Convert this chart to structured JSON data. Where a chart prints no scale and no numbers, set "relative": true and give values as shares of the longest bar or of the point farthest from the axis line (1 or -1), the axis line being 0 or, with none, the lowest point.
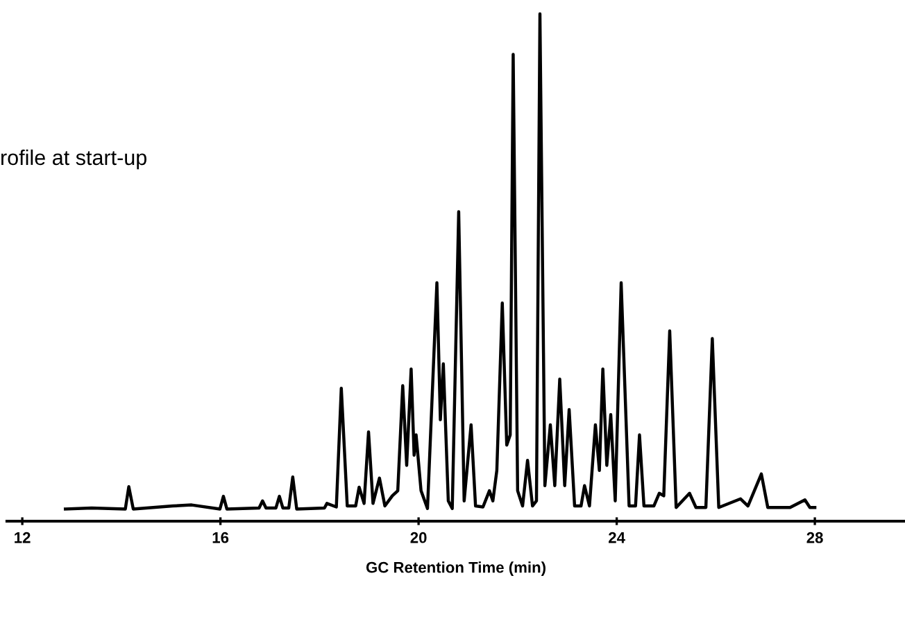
{
  "chart_data": {
    "type": "line",
    "title": "rofile at start-up",
    "xlabel": "GC Retention Time (min)",
    "relative": true,
    "xlim": [
      11.69,
      29.82
    ],
    "xticks": [
      12,
      16,
      20,
      24,
      28
    ],
    "tick_labels": "x",
    "grid": false,
    "marker": "none",
    "line_style": "solid",
    "series": [
      {
        "color": "#000000",
        "x": [
          12.87,
          13.4,
          14.08,
          14.15,
          14.24,
          15.04,
          15.42,
          15.99,
          16.06,
          16.13,
          16.78,
          16.85,
          16.92,
          17.12,
          17.19,
          17.26,
          17.38,
          17.46,
          17.54,
          18.1,
          18.15,
          18.34,
          18.44,
          18.56,
          18.73,
          18.8,
          18.9,
          18.99,
          19.08,
          19.21,
          19.32,
          19.47,
          19.58,
          19.68,
          19.76,
          19.85,
          19.91,
          19.95,
          20.05,
          20.18,
          20.37,
          20.44,
          20.5,
          20.6,
          20.68,
          20.81,
          20.92,
          21.06,
          21.15,
          21.3,
          21.43,
          21.5,
          21.58,
          21.69,
          21.78,
          21.85,
          21.91,
          22.0,
          22.1,
          22.2,
          22.3,
          22.38,
          22.45,
          22.55,
          22.66,
          22.75,
          22.85,
          22.95,
          23.04,
          23.15,
          23.28,
          23.35,
          23.45,
          23.57,
          23.65,
          23.72,
          23.8,
          23.88,
          23.97,
          24.09,
          24.25,
          24.38,
          24.46,
          24.55,
          24.75,
          24.86,
          24.95,
          25.07,
          25.2,
          25.47,
          25.6,
          25.8,
          25.93,
          26.06,
          26.5,
          26.65,
          26.92,
          27.05,
          27.5,
          27.8,
          27.9,
          28.0
        ],
        "values": [
          0.024,
          0.026,
          0.024,
          0.068,
          0.024,
          0.03,
          0.032,
          0.024,
          0.049,
          0.024,
          0.026,
          0.04,
          0.026,
          0.026,
          0.049,
          0.026,
          0.026,
          0.087,
          0.024,
          0.026,
          0.035,
          0.028,
          0.262,
          0.03,
          0.03,
          0.067,
          0.035,
          0.176,
          0.035,
          0.085,
          0.03,
          0.05,
          0.06,
          0.267,
          0.11,
          0.3,
          0.13,
          0.17,
          0.06,
          0.025,
          0.47,
          0.2,
          0.31,
          0.04,
          0.025,
          0.61,
          0.04,
          0.19,
          0.03,
          0.028,
          0.06,
          0.04,
          0.1,
          0.43,
          0.15,
          0.17,
          0.92,
          0.06,
          0.03,
          0.12,
          0.03,
          0.04,
          1.0,
          0.07,
          0.19,
          0.07,
          0.28,
          0.07,
          0.22,
          0.03,
          0.03,
          0.07,
          0.03,
          0.19,
          0.1,
          0.3,
          0.11,
          0.21,
          0.04,
          0.47,
          0.03,
          0.03,
          0.17,
          0.03,
          0.03,
          0.055,
          0.05,
          0.375,
          0.027,
          0.055,
          0.027,
          0.027,
          0.36,
          0.027,
          0.044,
          0.03,
          0.093,
          0.027,
          0.027,
          0.042,
          0.027,
          0.027
        ]
      }
    ]
  }
}
